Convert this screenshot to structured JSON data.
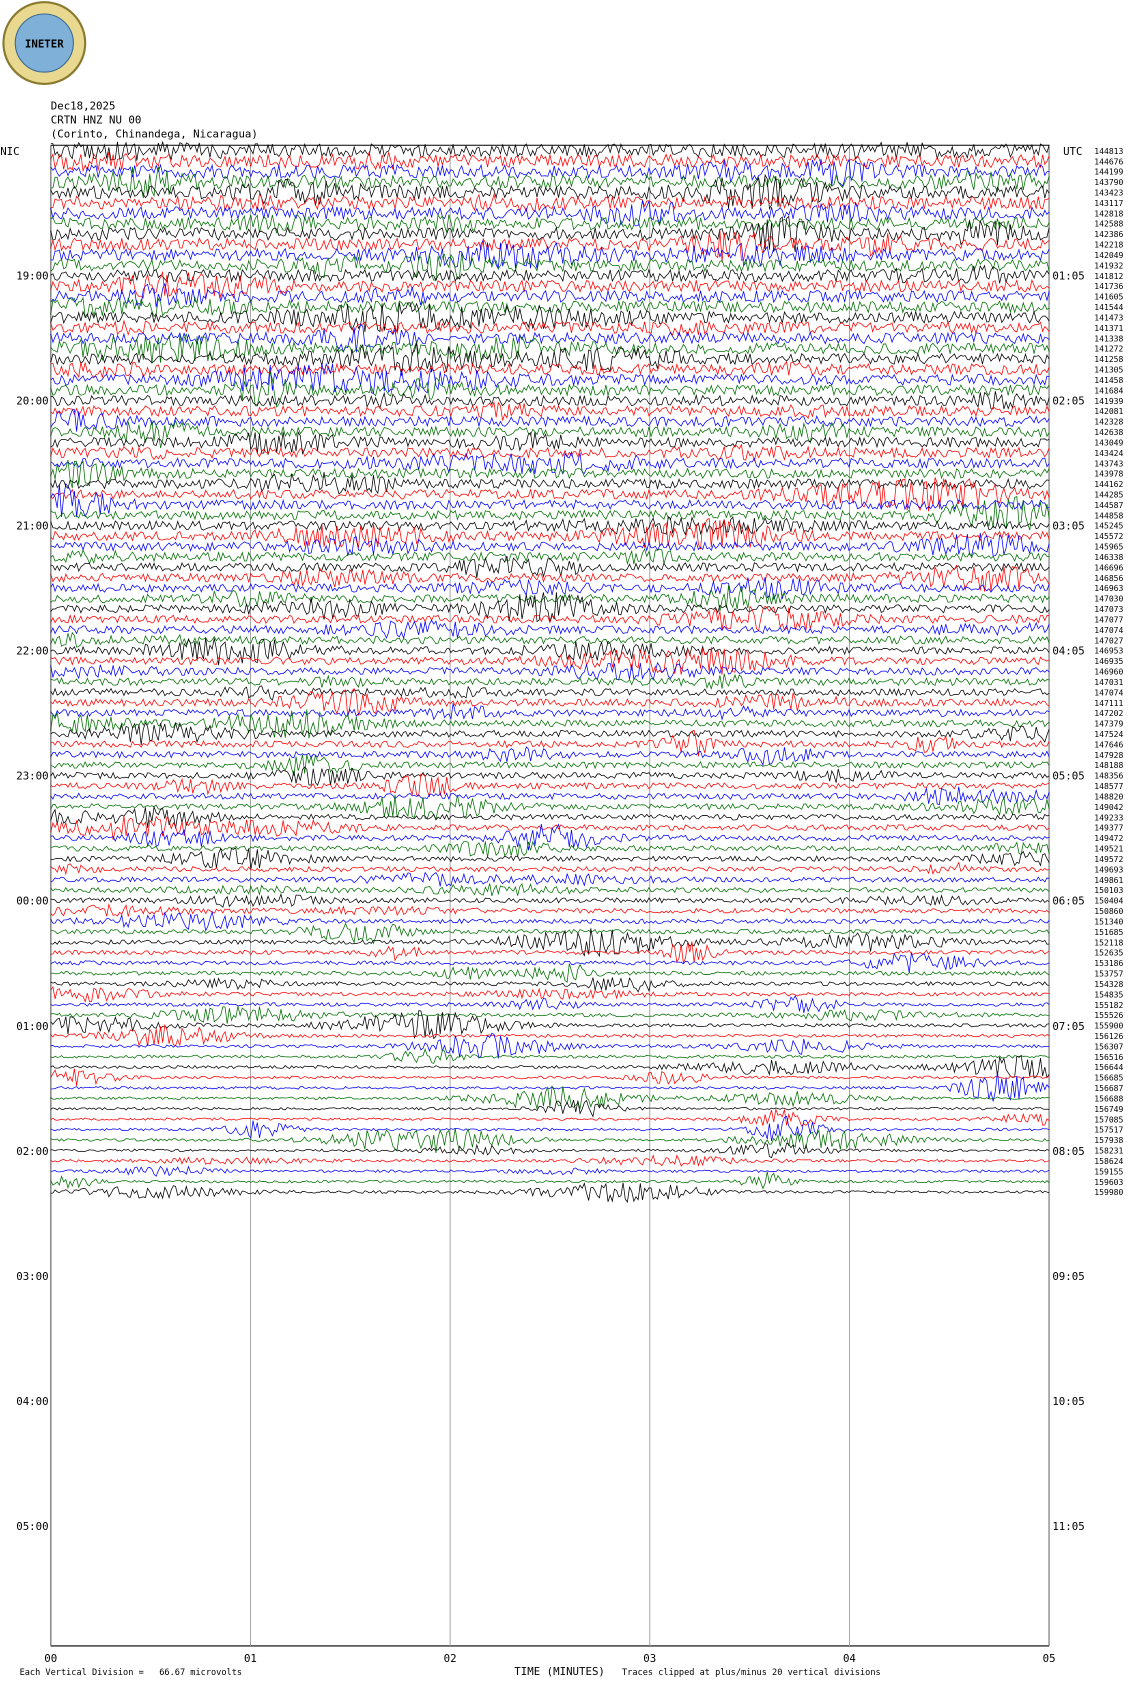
{
  "chart_data": {
    "type": "helicorder",
    "logo": "INETER",
    "date": "Dec18,2025",
    "station": "CRTN HNZ NU 00",
    "location": "(Corinto, Chinandega, Nicaragua)",
    "left_zone": "NIC",
    "right_zone": "UTC",
    "left_times": [
      "19:00",
      "20:00",
      "21:00",
      "22:00",
      "23:00",
      "00:00",
      "01:00",
      "02:00",
      "03:00",
      "04:00",
      "05:00"
    ],
    "right_times": [
      "01:05",
      "02:05",
      "03:05",
      "04:05",
      "05:05",
      "06:05",
      "07:05",
      "08:05",
      "09:05",
      "10:05",
      "11:05"
    ],
    "trace_levels": [
      144813,
      144676,
      144199,
      143790,
      143423,
      143117,
      142818,
      142588,
      142386,
      142218,
      142049,
      141932,
      141812,
      141736,
      141605,
      141544,
      141473,
      141371,
      141338,
      141272,
      141258,
      141305,
      141458,
      141684,
      141939,
      142081,
      142328,
      142638,
      143049,
      143424,
      143743,
      143978,
      144162,
      144285,
      144587,
      144858,
      145245,
      145572,
      145965,
      146338,
      146696,
      146856,
      146963,
      147030,
      147073,
      147077,
      147074,
      147027,
      146953,
      146935,
      146960,
      147031,
      147074,
      147111,
      147202,
      147379,
      147524,
      147646,
      147928,
      148188,
      148356,
      148577,
      148820,
      149042,
      149233,
      149377,
      149472,
      149521,
      149572,
      149693,
      149861,
      150103,
      150404,
      150860,
      151340,
      151685,
      152118,
      152635,
      153186,
      153757,
      154328,
      154835,
      155182,
      155526,
      155900,
      156126,
      156307,
      156516,
      156644,
      156685,
      156687,
      156688,
      156749,
      157085,
      157517,
      157938,
      158231,
      158624,
      159155,
      159603,
      159980
    ],
    "trace_colors": [
      "#000000",
      "#ff0000",
      "#0000ff",
      "#007000"
    ],
    "xlim": [
      0,
      5
    ],
    "xticks": [
      {
        "value": 0,
        "label": "00"
      },
      {
        "value": 1,
        "label": "01"
      },
      {
        "value": 2,
        "label": "02"
      },
      {
        "value": 3,
        "label": "03"
      },
      {
        "value": 4,
        "label": "04"
      },
      {
        "value": 5,
        "label": "05"
      }
    ],
    "xlabel": "TIME (MINUTES)",
    "scale_note": "Each Vertical Division =   66.67 microvolts",
    "clip_note": "Traces clipped at plus/minus 20 vertical divisions"
  }
}
